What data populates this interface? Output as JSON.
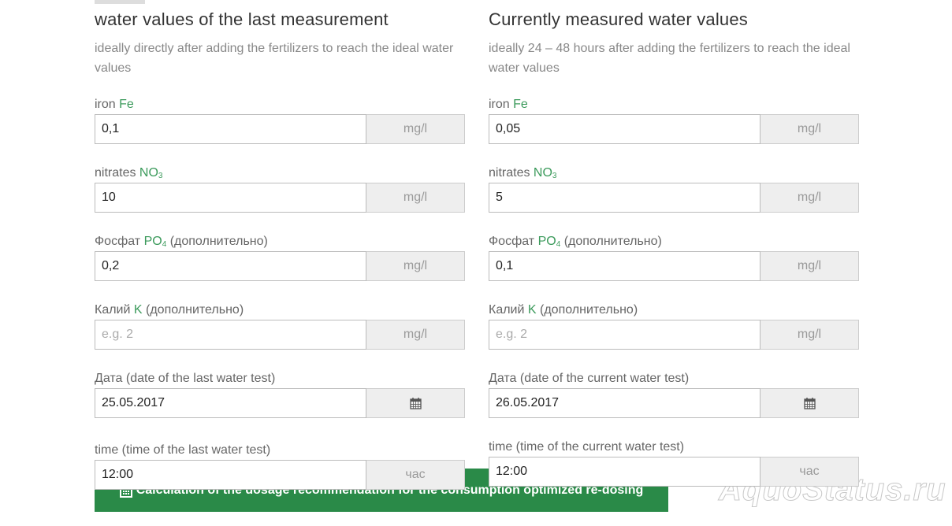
{
  "columns": [
    {
      "title": "water values of the last measurement",
      "subtitle": "ideally directly after adding the fertilizers to reach the ideal water values",
      "fields": [
        {
          "label": "iron",
          "symbol": "Fe",
          "value": "0,1",
          "unit": "mg/l"
        },
        {
          "label": "nitrates",
          "symbol": "NO",
          "sub": "3",
          "value": "10",
          "unit": "mg/l"
        },
        {
          "label": "Фосфат",
          "symbol": "PO",
          "sub": "4",
          "suffix": "(дополнительно)",
          "value": "0,2",
          "unit": "mg/l"
        },
        {
          "label": "Калий",
          "symbol": "K",
          "suffix": "(дополнительно)",
          "placeholder": "e.g. 2",
          "unit": "mg/l"
        },
        {
          "label": "Дата (date of the last water test)",
          "value": "25.05.2017"
        },
        {
          "label": "time (time of the last water test)",
          "value": "12:00",
          "unit": "час"
        }
      ]
    },
    {
      "title": "Currently measured water values",
      "subtitle": "ideally 24 – 48 hours after adding the fertilizers to reach the ideal water values",
      "fields": [
        {
          "label": "iron",
          "symbol": "Fe",
          "value": "0,05",
          "unit": "mg/l"
        },
        {
          "label": "nitrates",
          "symbol": "NO",
          "sub": "3",
          "value": "5",
          "unit": "mg/l"
        },
        {
          "label": "Фосфат",
          "symbol": "PO",
          "sub": "4",
          "suffix": "(дополнительно)",
          "value": "0,1",
          "unit": "mg/l"
        },
        {
          "label": "Калий",
          "symbol": "K",
          "suffix": "(дополнительно)",
          "placeholder": "e.g. 2",
          "unit": "mg/l"
        },
        {
          "label": "Дата (date of the current water test)",
          "value": "26.05.2017"
        },
        {
          "label": "time (time of the current water test)",
          "value": "12:00",
          "unit": "час"
        }
      ]
    }
  ],
  "button": "Calculation of the dosage recommendation for the consumption optimized re-dosing",
  "watermark": "AquoStatus.ru"
}
